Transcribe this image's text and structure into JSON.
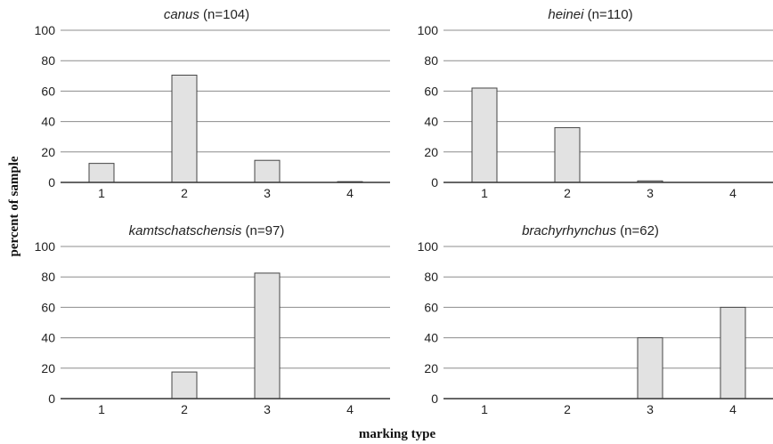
{
  "chart_data": [
    {
      "type": "bar",
      "title_italic": "canus",
      "title_suffix": " (n=104)",
      "categories": [
        "1",
        "2",
        "3",
        "4"
      ],
      "values": [
        12.5,
        70.5,
        14.5,
        0.5
      ],
      "ylim": [
        0,
        100
      ],
      "yticks": [
        "0",
        "20",
        "40",
        "60",
        "80",
        "100"
      ]
    },
    {
      "type": "bar",
      "title_italic": "heinei",
      "title_suffix": " (n=110)",
      "categories": [
        "1",
        "2",
        "3",
        "4"
      ],
      "values": [
        62,
        36,
        1,
        0
      ],
      "ylim": [
        0,
        100
      ],
      "yticks": [
        "0",
        "20",
        "40",
        "60",
        "80",
        "100"
      ]
    },
    {
      "type": "bar",
      "title_italic": "kamtschatschensis",
      "title_suffix": " (n=97)",
      "categories": [
        "1",
        "2",
        "3",
        "4"
      ],
      "values": [
        0,
        17.5,
        82.5,
        0
      ],
      "ylim": [
        0,
        100
      ],
      "yticks": [
        "0",
        "20",
        "40",
        "60",
        "80",
        "100"
      ]
    },
    {
      "type": "bar",
      "title_italic": "brachyrhynchus",
      "title_suffix": " (n=62)",
      "categories": [
        "1",
        "2",
        "3",
        "4"
      ],
      "values": [
        0,
        0,
        40,
        60
      ],
      "ylim": [
        0,
        100
      ],
      "yticks": [
        "0",
        "20",
        "40",
        "60",
        "80",
        "100"
      ]
    }
  ],
  "ylabel": "percent of sample",
  "xlabel": "marking type",
  "colors": {
    "bar_fill": "#e2e2e2",
    "bar_stroke": "#444444",
    "grid": "#8c8c8c"
  }
}
